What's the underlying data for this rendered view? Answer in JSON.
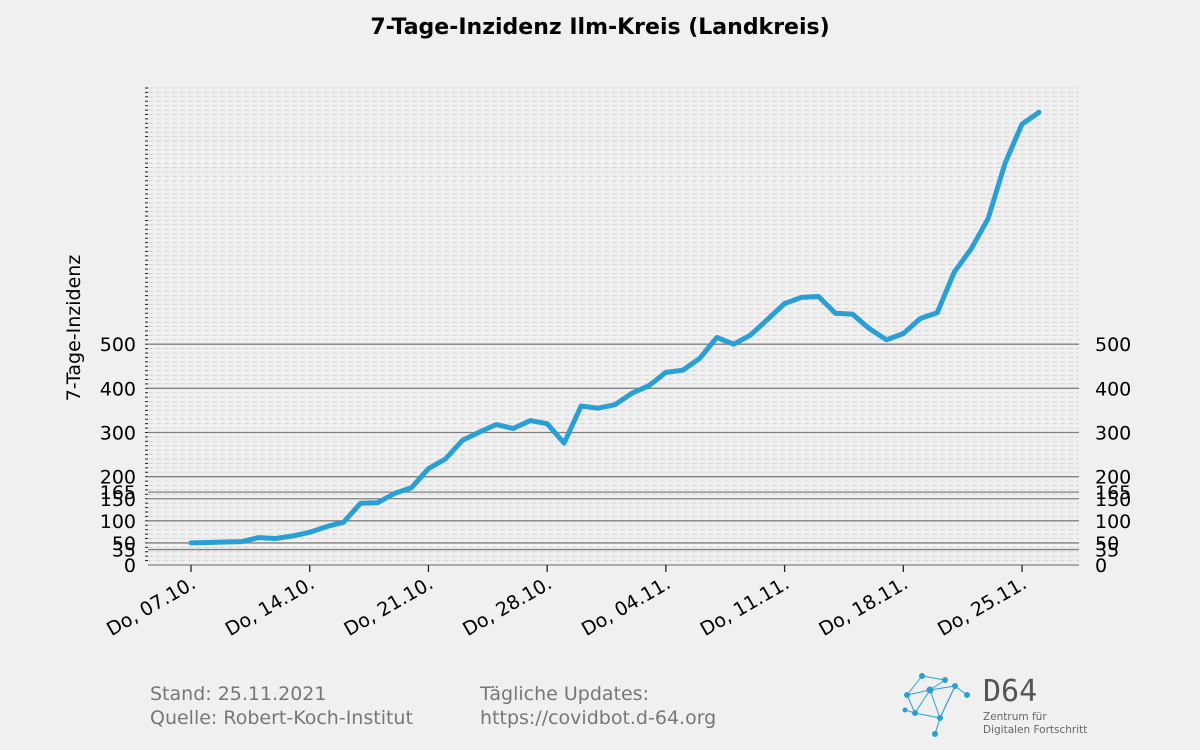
{
  "chart_data": {
    "type": "line",
    "title": "7-Tage-Inzidenz Ilm-Kreis (Landkreis)",
    "ylabel": "7-Tage-Inzidenz",
    "xlabel": "",
    "x_ticks": [
      "Do, 07.10.",
      "Do, 14.10.",
      "Do, 21.10.",
      "Do, 28.10.",
      "Do, 04.11.",
      "Do, 11.11.",
      "Do, 18.11.",
      "Do, 25.11."
    ],
    "y_ticks": [
      0,
      35,
      50,
      100,
      150,
      165,
      200,
      300,
      400,
      500
    ],
    "ylim": [
      0,
      1080
    ],
    "grid": "minor dashed every 10, major solid at tick values",
    "series": [
      {
        "color": "#2a9fd6",
        "values": [
          50,
          51,
          52,
          53,
          62,
          60,
          66,
          74,
          87,
          97,
          140,
          141,
          162,
          175,
          218,
          240,
          282,
          301,
          318,
          309,
          327,
          320,
          276,
          360,
          355,
          363,
          389,
          406,
          436,
          441,
          468,
          515,
          500,
          521,
          556,
          592,
          606,
          608,
          570,
          568,
          535,
          510,
          524,
          558,
          571,
          663,
          716,
          784,
          910,
          998,
          1025
        ]
      }
    ]
  },
  "footer": {
    "stand": "Stand: 25.11.2021",
    "quelle": "Quelle: Robert-Koch-Institut",
    "updates_label": "Tägliche Updates:",
    "updates_url": "https://covidbot.d-64.org"
  },
  "logo": {
    "name": "D64",
    "line1": "Zentrum für",
    "line2": "Digitalen Fortschritt",
    "color": "#2a9fd6"
  }
}
